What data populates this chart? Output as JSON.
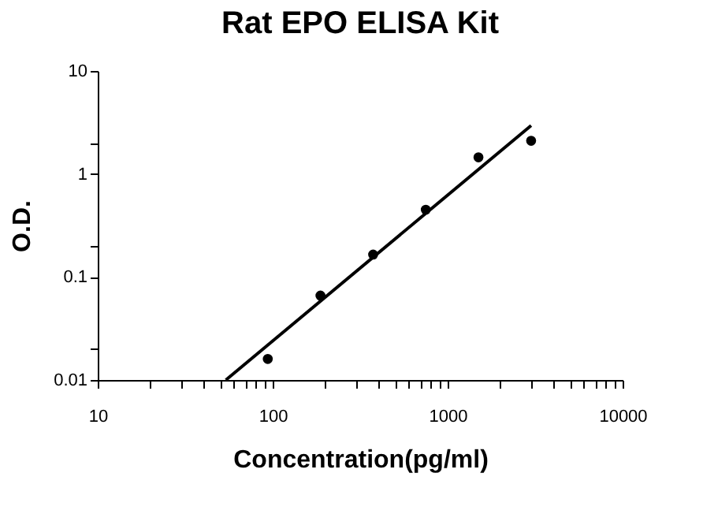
{
  "chart_data": {
    "type": "scatter",
    "title": "Rat EPO ELISA Kit",
    "xlabel": "Concentration(pg/ml)",
    "ylabel": "O.D.",
    "log": "xy",
    "grid": false,
    "xlim": [
      10,
      10000
    ],
    "ylim": [
      0.01,
      10
    ],
    "xticks": [
      10,
      {
        "value": 20,
        "label": null
      },
      {
        "value": 30,
        "label": null
      },
      {
        "value": 40,
        "label": null
      },
      {
        "value": 50,
        "label": null
      },
      {
        "value": 60,
        "label": null
      },
      {
        "value": 70,
        "label": null
      },
      {
        "value": 80,
        "label": null
      },
      {
        "value": 90,
        "label": null
      },
      100,
      {
        "value": 200,
        "label": null
      },
      {
        "value": 300,
        "label": null
      },
      {
        "value": 400,
        "label": null
      },
      {
        "value": 500,
        "label": null
      },
      {
        "value": 600,
        "label": null
      },
      {
        "value": 700,
        "label": null
      },
      {
        "value": 800,
        "label": null
      },
      {
        "value": 900,
        "label": null
      },
      1000,
      {
        "value": 2000,
        "label": null
      },
      {
        "value": 3000,
        "label": null
      },
      {
        "value": 4000,
        "label": null
      },
      {
        "value": 5000,
        "label": null
      },
      {
        "value": 6000,
        "label": null
      },
      {
        "value": 7000,
        "label": null
      },
      {
        "value": 8000,
        "label": null
      },
      {
        "value": 9000,
        "label": null
      },
      10000
    ],
    "yticks": [
      0.01,
      {
        "value": 0.02,
        "label": null
      },
      0.1,
      {
        "value": 0.2,
        "label": null
      },
      1,
      {
        "value": 2,
        "label": null
      },
      10
    ],
    "series": [
      {
        "marker": "circle",
        "color": "#000000",
        "x": [
          93.75,
          187.5,
          375,
          750,
          1500,
          3000
        ],
        "values": [
          0.016,
          0.066,
          0.165,
          0.45,
          1.45,
          2.1
        ]
      },
      {
        "type": "line",
        "color": "#000000",
        "line_style": "solid",
        "x": [
          54,
          3000
        ],
        "values": [
          0.01,
          2.95
        ]
      }
    ]
  }
}
